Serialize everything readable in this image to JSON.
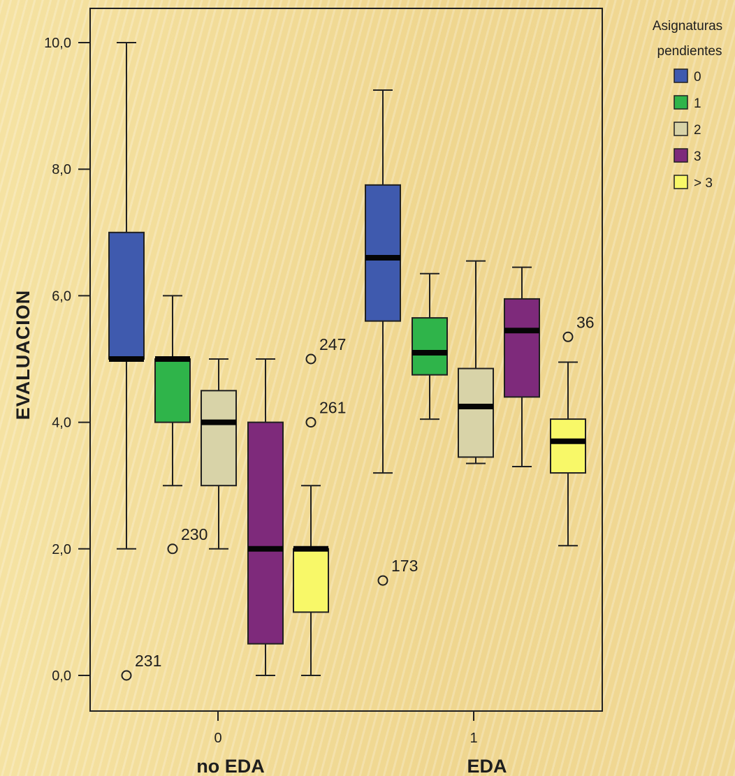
{
  "chart_data": {
    "type": "boxplot",
    "ylabel": "EVALUACION",
    "ylim": [
      0,
      10.5
    ],
    "y_ticks": [
      "0,0",
      "2,0",
      "4,0",
      "6,0",
      "8,0",
      "10,0"
    ],
    "y_tick_values": [
      0,
      2,
      4,
      6,
      8,
      10
    ],
    "x_ticks": [
      "0",
      "1"
    ],
    "categories": [
      "no EDA",
      "EDA"
    ],
    "legend": {
      "title_line1": "Asignaturas",
      "title_line2": "pendientes",
      "placement": "top-right",
      "items": [
        {
          "label": "0",
          "color": "#3f5aae"
        },
        {
          "label": "1",
          "color": "#2fb44a"
        },
        {
          "label": "2",
          "color": "#d8d3a8"
        },
        {
          "label": "3",
          "color": "#7e2a7b"
        },
        {
          "label": "> 3",
          "color": "#f8f868"
        }
      ]
    },
    "groups": [
      {
        "category": "no EDA",
        "boxes": [
          {
            "series": "0",
            "whisker_low": 2.0,
            "q1": 5.0,
            "median": 5.0,
            "q3": 7.0,
            "whisker_high": 10.0,
            "outliers": [
              {
                "value": 0.0,
                "label": "231"
              }
            ]
          },
          {
            "series": "1",
            "whisker_low": 3.0,
            "q1": 4.0,
            "median": 5.0,
            "q3": 5.0,
            "whisker_high": 6.0,
            "outliers": [
              {
                "value": 2.0,
                "label": "230"
              }
            ]
          },
          {
            "series": "2",
            "whisker_low": 2.0,
            "q1": 3.0,
            "median": 4.0,
            "q3": 4.5,
            "whisker_high": 5.0,
            "outliers": []
          },
          {
            "series": "3",
            "whisker_low": 0.0,
            "q1": 0.5,
            "median": 2.0,
            "q3": 4.0,
            "whisker_high": 5.0,
            "outliers": []
          },
          {
            "series": "> 3",
            "whisker_low": 0.0,
            "q1": 1.0,
            "median": 2.0,
            "q3": 2.0,
            "whisker_high": 3.0,
            "outliers": [
              {
                "value": 4.0,
                "label": "261"
              },
              {
                "value": 5.0,
                "label": "247"
              }
            ]
          }
        ]
      },
      {
        "category": "EDA",
        "boxes": [
          {
            "series": "0",
            "whisker_low": 3.2,
            "q1": 5.6,
            "median": 6.6,
            "q3": 7.75,
            "whisker_high": 9.25,
            "outliers": [
              {
                "value": 1.5,
                "label": "173"
              }
            ]
          },
          {
            "series": "1",
            "whisker_low": 4.05,
            "q1": 4.75,
            "median": 5.1,
            "q3": 5.65,
            "whisker_high": 6.35,
            "outliers": []
          },
          {
            "series": "2",
            "whisker_low": 3.35,
            "q1": 3.45,
            "median": 4.25,
            "q3": 4.85,
            "whisker_high": 6.55,
            "outliers": []
          },
          {
            "series": "3",
            "whisker_low": 3.3,
            "q1": 4.4,
            "median": 5.45,
            "q3": 5.95,
            "whisker_high": 6.45,
            "outliers": []
          },
          {
            "series": "> 3",
            "whisker_low": 2.05,
            "q1": 3.2,
            "median": 3.7,
            "q3": 4.05,
            "whisker_high": 4.95,
            "outliers": [
              {
                "value": 5.35,
                "label": "36"
              }
            ]
          }
        ]
      }
    ]
  }
}
